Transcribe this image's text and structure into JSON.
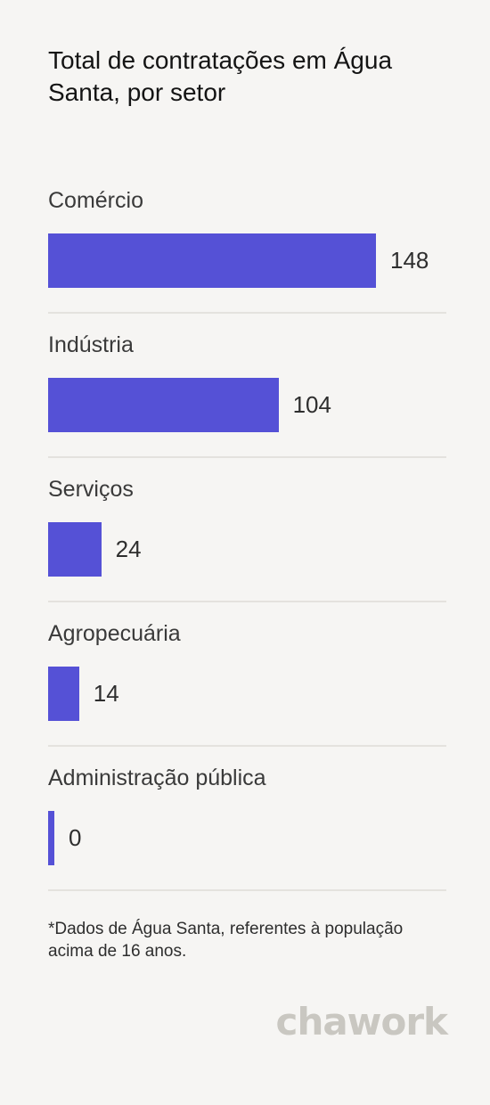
{
  "chart_data": {
    "type": "bar",
    "orientation": "horizontal",
    "title": "Total de contratações em Água Santa, por setor",
    "categories": [
      "Comércio",
      "Indústria",
      "Serviços",
      "Agropecuária",
      "Administração pública"
    ],
    "values": [
      148,
      104,
      24,
      14,
      0
    ],
    "value_labels": [
      "148",
      "104",
      "24",
      "14",
      "0"
    ],
    "bar_color": "#5551d6",
    "grid": false
  },
  "footnote": "*Dados de Água Santa, referentes à população acima de 16 anos.",
  "logo_text": "chawork"
}
